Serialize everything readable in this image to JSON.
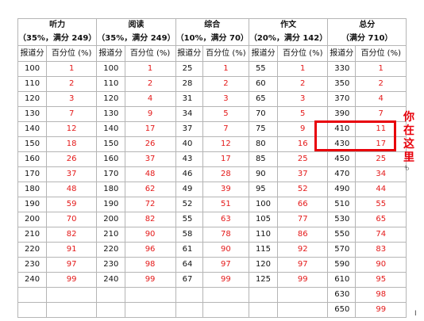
{
  "sections": [
    {
      "title": "听力",
      "subtitle": "（35%，满分 249）"
    },
    {
      "title": "阅读",
      "subtitle": "（35%，满分 249）"
    },
    {
      "title": "综合",
      "subtitle": "（10%，满分 70）"
    },
    {
      "title": "作文",
      "subtitle": "（20%，满分 142）"
    },
    {
      "title": "总分",
      "subtitle": "（满分 710）"
    }
  ],
  "col_headers": {
    "score": "报道分",
    "percentile": "百分位 (%)"
  },
  "rows": [
    [
      [
        "100",
        "1"
      ],
      [
        "100",
        "1"
      ],
      [
        "25",
        "1"
      ],
      [
        "55",
        "1"
      ],
      [
        "330",
        "1"
      ]
    ],
    [
      [
        "110",
        "2"
      ],
      [
        "110",
        "2"
      ],
      [
        "28",
        "2"
      ],
      [
        "60",
        "2"
      ],
      [
        "350",
        "2"
      ]
    ],
    [
      [
        "120",
        "3"
      ],
      [
        "120",
        "4"
      ],
      [
        "31",
        "3"
      ],
      [
        "65",
        "3"
      ],
      [
        "370",
        "4"
      ]
    ],
    [
      [
        "130",
        "7"
      ],
      [
        "130",
        "9"
      ],
      [
        "34",
        "5"
      ],
      [
        "70",
        "5"
      ],
      [
        "390",
        "7"
      ]
    ],
    [
      [
        "140",
        "12"
      ],
      [
        "140",
        "17"
      ],
      [
        "37",
        "7"
      ],
      [
        "75",
        "9"
      ],
      [
        "410",
        "11"
      ]
    ],
    [
      [
        "150",
        "18"
      ],
      [
        "150",
        "26"
      ],
      [
        "40",
        "12"
      ],
      [
        "80",
        "16"
      ],
      [
        "430",
        "17"
      ]
    ],
    [
      [
        "160",
        "26"
      ],
      [
        "160",
        "37"
      ],
      [
        "43",
        "17"
      ],
      [
        "85",
        "25"
      ],
      [
        "450",
        "25"
      ]
    ],
    [
      [
        "170",
        "37"
      ],
      [
        "170",
        "48"
      ],
      [
        "46",
        "28"
      ],
      [
        "90",
        "37"
      ],
      [
        "470",
        "34"
      ]
    ],
    [
      [
        "180",
        "48"
      ],
      [
        "180",
        "62"
      ],
      [
        "49",
        "39"
      ],
      [
        "95",
        "52"
      ],
      [
        "490",
        "44"
      ]
    ],
    [
      [
        "190",
        "59"
      ],
      [
        "190",
        "72"
      ],
      [
        "52",
        "51"
      ],
      [
        "100",
        "66"
      ],
      [
        "510",
        "55"
      ]
    ],
    [
      [
        "200",
        "70"
      ],
      [
        "200",
        "82"
      ],
      [
        "55",
        "63"
      ],
      [
        "105",
        "77"
      ],
      [
        "530",
        "65"
      ]
    ],
    [
      [
        "210",
        "82"
      ],
      [
        "210",
        "90"
      ],
      [
        "58",
        "78"
      ],
      [
        "110",
        "86"
      ],
      [
        "550",
        "74"
      ]
    ],
    [
      [
        "220",
        "91"
      ],
      [
        "220",
        "96"
      ],
      [
        "61",
        "90"
      ],
      [
        "115",
        "92"
      ],
      [
        "570",
        "83"
      ]
    ],
    [
      [
        "230",
        "97"
      ],
      [
        "230",
        "98"
      ],
      [
        "64",
        "97"
      ],
      [
        "120",
        "97"
      ],
      [
        "590",
        "90"
      ]
    ],
    [
      [
        "240",
        "99"
      ],
      [
        "240",
        "99"
      ],
      [
        "67",
        "99"
      ],
      [
        "125",
        "99"
      ],
      [
        "610",
        "95"
      ]
    ],
    [
      [
        "",
        ""
      ],
      [
        "",
        ""
      ],
      [
        "",
        ""
      ],
      [
        "",
        ""
      ],
      [
        "630",
        "98"
      ]
    ],
    [
      [
        "",
        ""
      ],
      [
        "",
        ""
      ],
      [
        "",
        ""
      ],
      [
        "",
        ""
      ],
      [
        "650",
        "99"
      ]
    ]
  ],
  "annotation": {
    "you_are_here": "你在这里",
    "small_mark": "も"
  },
  "cursor_mark": "I"
}
